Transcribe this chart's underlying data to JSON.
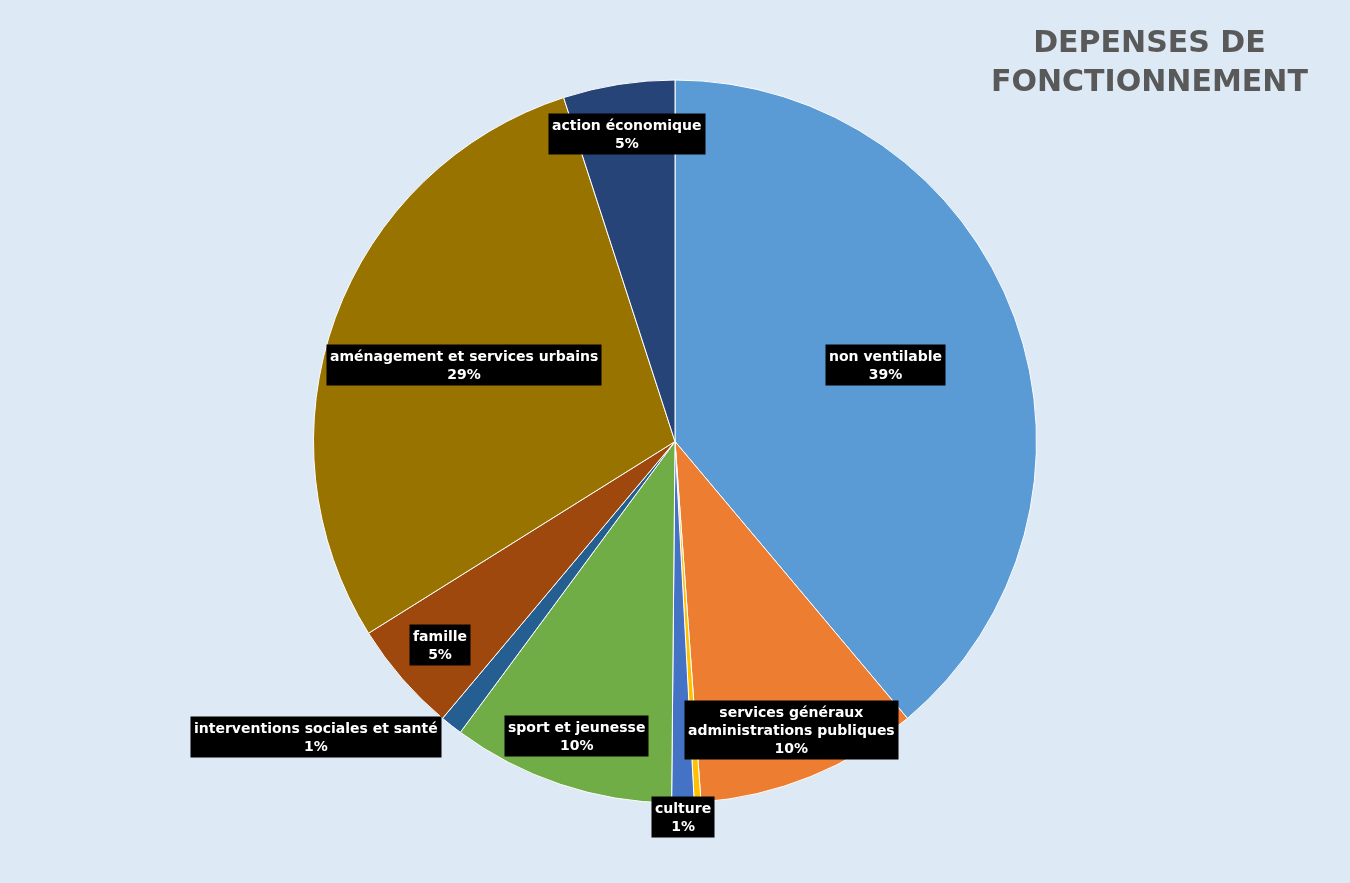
{
  "chart_data": {
    "type": "pie",
    "title": "DEPENSES DE FONCTIONNEMENT",
    "categories": [
      "non ventilable",
      "services généraux administrations publiques",
      null,
      "culture",
      "sport et jeunesse",
      "interventions sociales et santé",
      "famille",
      "aménagement et services urbains",
      "action économique"
    ],
    "values": [
      39,
      10,
      0.3,
      1,
      10,
      1,
      5,
      29,
      5
    ],
    "value_labels": [
      "39%",
      "10%",
      null,
      "1%",
      "10%",
      "1%",
      "5%",
      "29%",
      "5%"
    ],
    "colors": [
      "#5b9bd5",
      "#ed7d31",
      "#ffc000",
      "#4472c4",
      "#70ad47",
      "#255e91",
      "#9e480e",
      "#997300",
      "#264478"
    ],
    "legend": false
  }
}
